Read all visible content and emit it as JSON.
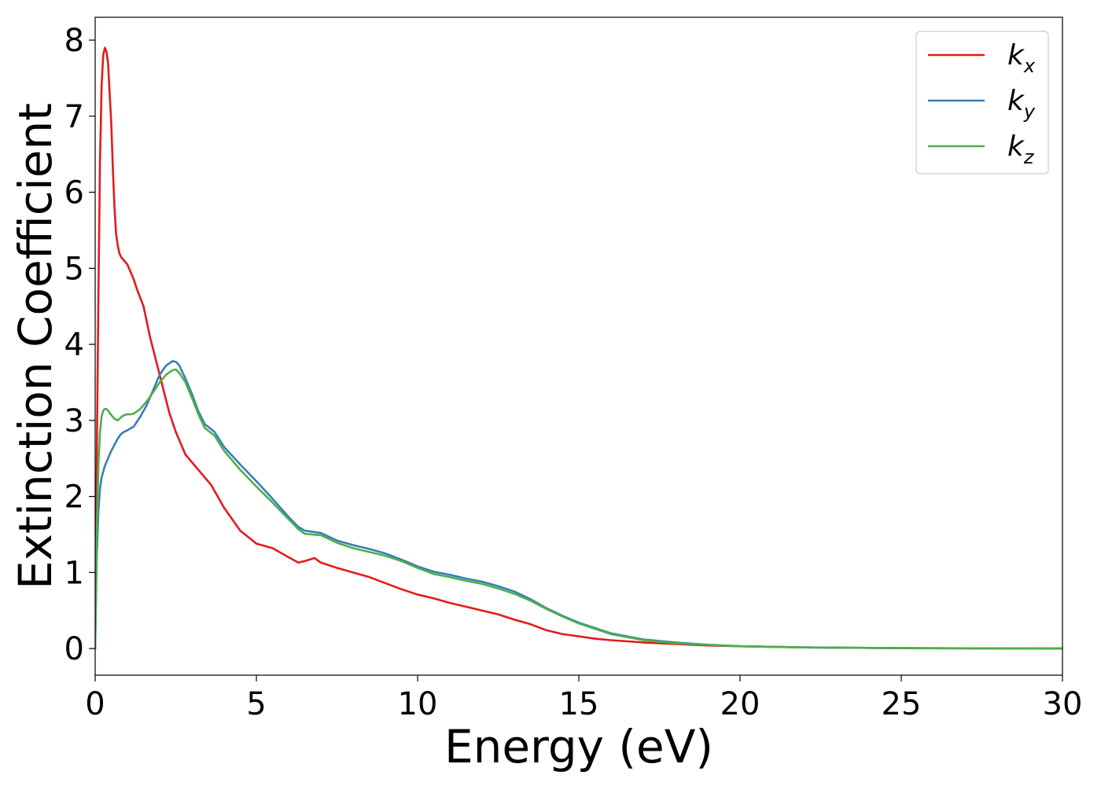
{
  "chart_data": {
    "type": "line",
    "title": "",
    "xlabel": "Energy (eV)",
    "ylabel": "Extinction Coefficient",
    "xlim": [
      0,
      30
    ],
    "ylim": [
      -0.35,
      8.3
    ],
    "xticks": [
      0,
      5,
      10,
      15,
      20,
      25,
      30
    ],
    "yticks": [
      0,
      1,
      2,
      3,
      4,
      5,
      6,
      7,
      8
    ],
    "grid": false,
    "legend_position": "top-right",
    "series": [
      {
        "name": "k",
        "sub": "x",
        "color": "#e41a1c",
        "x": [
          0,
          0.05,
          0.1,
          0.15,
          0.2,
          0.25,
          0.3,
          0.35,
          0.4,
          0.45,
          0.5,
          0.55,
          0.6,
          0.65,
          0.7,
          0.75,
          0.8,
          0.9,
          1.0,
          1.1,
          1.2,
          1.3,
          1.5,
          1.7,
          2.0,
          2.3,
          2.5,
          2.8,
          3.0,
          3.3,
          3.6,
          4.0,
          4.5,
          5.0,
          5.5,
          6.0,
          6.3,
          6.5,
          6.8,
          7.0,
          7.5,
          8.0,
          8.5,
          9.0,
          9.5,
          10.0,
          10.5,
          11.0,
          11.5,
          12.0,
          12.5,
          13.0,
          13.5,
          14.0,
          14.5,
          15.0,
          15.5,
          16.0,
          17.0,
          18.0,
          19.0,
          20.0,
          22.0,
          25.0,
          28.0,
          30.0
        ],
        "y": [
          0,
          2.5,
          4.6,
          6.4,
          7.4,
          7.8,
          7.9,
          7.85,
          7.7,
          7.3,
          6.9,
          6.3,
          5.8,
          5.45,
          5.3,
          5.2,
          5.15,
          5.1,
          5.05,
          4.95,
          4.85,
          4.72,
          4.5,
          4.1,
          3.6,
          3.1,
          2.85,
          2.55,
          2.45,
          2.3,
          2.15,
          1.85,
          1.55,
          1.38,
          1.32,
          1.2,
          1.13,
          1.15,
          1.19,
          1.13,
          1.06,
          1.0,
          0.94,
          0.86,
          0.78,
          0.71,
          0.66,
          0.6,
          0.55,
          0.5,
          0.45,
          0.38,
          0.32,
          0.24,
          0.19,
          0.16,
          0.13,
          0.11,
          0.08,
          0.06,
          0.04,
          0.03,
          0.015,
          0.005,
          0.002,
          0.001
        ]
      },
      {
        "name": "k",
        "sub": "y",
        "color": "#377eb8",
        "x": [
          0,
          0.05,
          0.1,
          0.15,
          0.2,
          0.3,
          0.4,
          0.5,
          0.6,
          0.7,
          0.8,
          0.9,
          1.0,
          1.2,
          1.4,
          1.6,
          1.8,
          2.0,
          2.2,
          2.4,
          2.5,
          2.6,
          2.8,
          3.0,
          3.2,
          3.4,
          3.7,
          4.0,
          4.5,
          5.0,
          5.5,
          6.0,
          6.3,
          6.5,
          7.0,
          7.5,
          8.0,
          8.5,
          9.0,
          9.5,
          10.0,
          10.5,
          11.0,
          11.5,
          12.0,
          12.5,
          13.0,
          13.5,
          14.0,
          14.5,
          15.0,
          16.0,
          17.0,
          18.0,
          19.0,
          20.0,
          22.0,
          25.0,
          28.0,
          30.0
        ],
        "y": [
          0,
          1.2,
          1.8,
          2.1,
          2.25,
          2.4,
          2.5,
          2.6,
          2.68,
          2.76,
          2.82,
          2.85,
          2.87,
          2.92,
          3.05,
          3.2,
          3.4,
          3.6,
          3.72,
          3.78,
          3.77,
          3.73,
          3.55,
          3.35,
          3.12,
          2.95,
          2.85,
          2.65,
          2.42,
          2.2,
          1.97,
          1.73,
          1.6,
          1.55,
          1.52,
          1.42,
          1.36,
          1.31,
          1.25,
          1.17,
          1.08,
          1.01,
          0.97,
          0.92,
          0.88,
          0.82,
          0.75,
          0.65,
          0.53,
          0.43,
          0.34,
          0.2,
          0.12,
          0.08,
          0.05,
          0.03,
          0.015,
          0.006,
          0.002,
          0.001
        ]
      },
      {
        "name": "k",
        "sub": "z",
        "color": "#4daf4a",
        "x": [
          0,
          0.05,
          0.1,
          0.15,
          0.2,
          0.25,
          0.3,
          0.35,
          0.4,
          0.5,
          0.6,
          0.7,
          0.8,
          0.9,
          1.0,
          1.1,
          1.2,
          1.4,
          1.6,
          1.8,
          2.0,
          2.2,
          2.4,
          2.5,
          2.6,
          2.8,
          3.0,
          3.2,
          3.4,
          3.7,
          4.0,
          4.5,
          5.0,
          5.5,
          6.0,
          6.3,
          6.5,
          7.0,
          7.5,
          8.0,
          8.5,
          9.0,
          9.5,
          10.0,
          10.5,
          11.0,
          11.5,
          12.0,
          12.5,
          13.0,
          13.5,
          14.0,
          14.5,
          15.0,
          16.0,
          17.0,
          18.0,
          19.0,
          20.0,
          22.0,
          25.0,
          28.0,
          30.0
        ],
        "y": [
          0,
          1.5,
          2.4,
          2.85,
          3.05,
          3.13,
          3.15,
          3.15,
          3.13,
          3.07,
          3.02,
          3.0,
          3.04,
          3.07,
          3.08,
          3.08,
          3.09,
          3.15,
          3.25,
          3.37,
          3.5,
          3.6,
          3.66,
          3.67,
          3.63,
          3.5,
          3.3,
          3.08,
          2.9,
          2.8,
          2.6,
          2.35,
          2.13,
          1.92,
          1.7,
          1.57,
          1.51,
          1.49,
          1.39,
          1.32,
          1.27,
          1.22,
          1.15,
          1.06,
          0.98,
          0.94,
          0.89,
          0.85,
          0.79,
          0.72,
          0.63,
          0.52,
          0.42,
          0.33,
          0.19,
          0.11,
          0.07,
          0.05,
          0.03,
          0.015,
          0.006,
          0.002,
          0.001
        ]
      }
    ]
  }
}
